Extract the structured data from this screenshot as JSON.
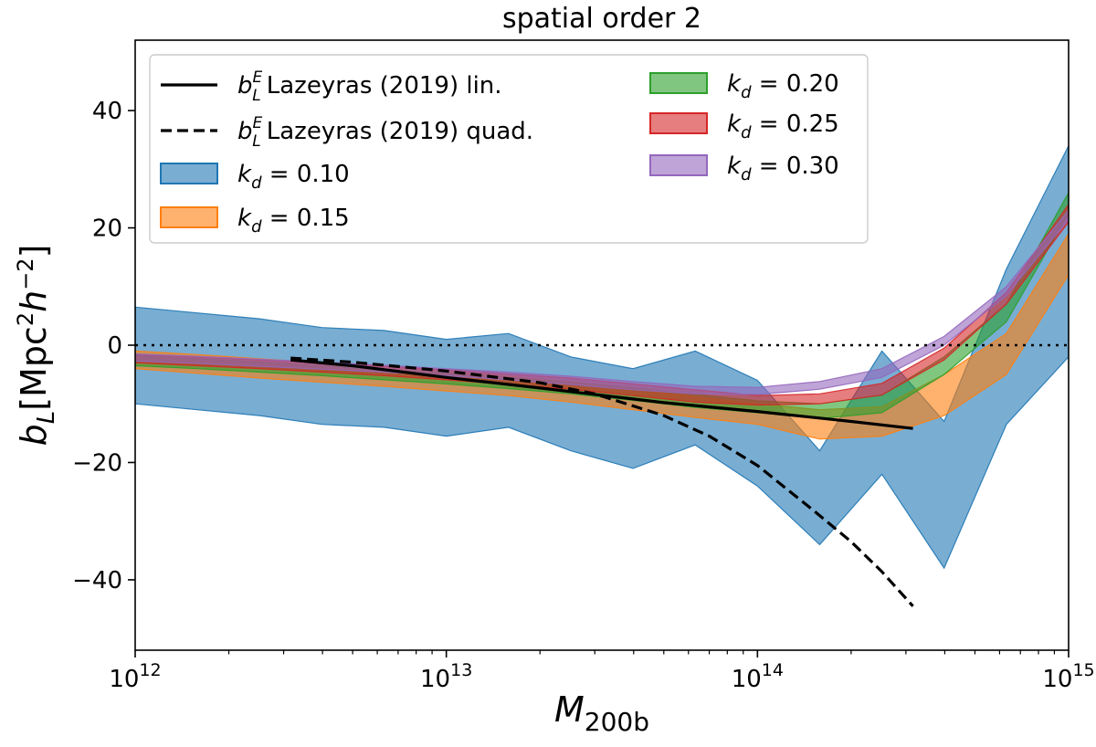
{
  "chart_data": {
    "type": "area",
    "title": "spatial order 2",
    "xlabel": "M",
    "xlabel_sub": "200b",
    "ylabel": "b_L[Mpc^2 h^-2]",
    "xscale": "log",
    "xlim": [
      1000000000000.0,
      1000000000000000.0
    ],
    "ylim": [
      -52,
      52
    ],
    "x_ticks": [
      {
        "value": 1000000000000.0,
        "base": "10",
        "exp": "12"
      },
      {
        "value": 10000000000000.0,
        "base": "10",
        "exp": "13"
      },
      {
        "value": 100000000000000.0,
        "base": "10",
        "exp": "14"
      },
      {
        "value": 1000000000000000.0,
        "base": "10",
        "exp": "15"
      }
    ],
    "y_ticks": [
      {
        "value": 40,
        "label": "40"
      },
      {
        "value": 20,
        "label": "20"
      },
      {
        "value": 0,
        "label": "0"
      },
      {
        "value": -20,
        "label": "−20"
      },
      {
        "value": -40,
        "label": "−40"
      }
    ],
    "zero_line": 0,
    "bands": [
      {
        "name": "k_d = 0.10",
        "sub": "d",
        "value_text": "0.10",
        "fill": "#1f77b4",
        "opacity": 0.6,
        "x": [
          1000000000000.0,
          1585000000000.0,
          2512000000000.0,
          3981000000000.0,
          6310000000000.0,
          10000000000000.0,
          15850000000000.0,
          25120000000000.0,
          39810000000000.0,
          63100000000000.0,
          100000000000000.0,
          158500000000000.0,
          251200000000000.0,
          398100000000000.0,
          631000000000000.0,
          1000000000000000.0
        ],
        "upper": [
          6.5,
          5.5,
          4.5,
          3,
          2.5,
          1,
          2,
          -2,
          -4,
          -1,
          -6,
          -18,
          -1,
          -13,
          13,
          34
        ],
        "lower": [
          -10,
          -11,
          -12,
          -13.5,
          -14,
          -15.5,
          -14,
          -18,
          -21,
          -17,
          -24,
          -34,
          -22,
          -38,
          -13.5,
          -2
        ]
      },
      {
        "name": "k_d = 0.15",
        "sub": "d",
        "value_text": "0.15",
        "fill": "#ff7f0e",
        "opacity": 0.6,
        "x": [
          1000000000000.0,
          1585000000000.0,
          2512000000000.0,
          3981000000000.0,
          6310000000000.0,
          10000000000000.0,
          15850000000000.0,
          25120000000000.0,
          39810000000000.0,
          63100000000000.0,
          100000000000000.0,
          158500000000000.0,
          251200000000000.0,
          398100000000000.0,
          631000000000000.0,
          1000000000000000.0
        ],
        "upper": [
          -1,
          -1.6,
          -2.3,
          -3,
          -3.7,
          -4.5,
          -5.3,
          -6.3,
          -7.5,
          -8.8,
          -10,
          -11,
          -10.5,
          -5,
          2,
          19
        ],
        "lower": [
          -4,
          -4.8,
          -5.6,
          -6.3,
          -7,
          -7.8,
          -8.6,
          -9.7,
          -11,
          -12.3,
          -13.5,
          -16,
          -15.5,
          -12,
          -5,
          12
        ]
      },
      {
        "name": "k_d = 0.20",
        "sub": "d",
        "value_text": "0.20",
        "fill": "#2ca02c",
        "opacity": 0.6,
        "x": [
          1000000000000.0,
          1585000000000.0,
          2512000000000.0,
          3981000000000.0,
          6310000000000.0,
          10000000000000.0,
          15850000000000.0,
          25120000000000.0,
          39810000000000.0,
          63100000000000.0,
          100000000000000.0,
          158500000000000.0,
          251200000000000.0,
          398100000000000.0,
          631000000000000.0,
          1000000000000000.0
        ],
        "upper": [
          -1.8,
          -2.3,
          -2.9,
          -3.5,
          -4.1,
          -4.8,
          -5.5,
          -6.3,
          -7.3,
          -8.4,
          -9.5,
          -10,
          -8.5,
          -2,
          7,
          26
        ],
        "lower": [
          -3.5,
          -4,
          -4.6,
          -5.2,
          -5.9,
          -6.6,
          -7.4,
          -8.3,
          -9.4,
          -10.6,
          -11.5,
          -12.5,
          -11.5,
          -5,
          4,
          22.5
        ]
      },
      {
        "name": "k_d = 0.25",
        "sub": "d",
        "value_text": "0.25",
        "fill": "#d62728",
        "opacity": 0.6,
        "x": [
          1000000000000.0,
          1585000000000.0,
          2512000000000.0,
          3981000000000.0,
          6310000000000.0,
          10000000000000.0,
          15850000000000.0,
          25120000000000.0,
          39810000000000.0,
          63100000000000.0,
          100000000000000.0,
          158500000000000.0,
          251200000000000.0,
          398100000000000.0,
          631000000000000.0,
          1000000000000000.0
        ],
        "upper": [
          -1.6,
          -2,
          -2.5,
          -3,
          -3.6,
          -4.2,
          -4.9,
          -5.6,
          -6.6,
          -7.6,
          -8.6,
          -8.3,
          -6.5,
          -0.5,
          9,
          24
        ],
        "lower": [
          -3,
          -3.5,
          -4,
          -4.6,
          -5.2,
          -5.9,
          -6.7,
          -7.5,
          -8.6,
          -9.7,
          -10.2,
          -10,
          -8.5,
          -2.5,
          7,
          21
        ]
      },
      {
        "name": "k_d = 0.30",
        "sub": "d",
        "value_text": "0.30",
        "fill": "#9467bd",
        "opacity": 0.6,
        "x": [
          1000000000000.0,
          1585000000000.0,
          2512000000000.0,
          3981000000000.0,
          6310000000000.0,
          10000000000000.0,
          15850000000000.0,
          25120000000000.0,
          39810000000000.0,
          63100000000000.0,
          100000000000000.0,
          158500000000000.0,
          251200000000000.0,
          398100000000000.0,
          631000000000000.0,
          1000000000000000.0
        ],
        "upper": [
          -1.5,
          -1.9,
          -2.4,
          -2.9,
          -3.4,
          -4,
          -4.6,
          -5.3,
          -6.2,
          -7,
          -7.2,
          -6.2,
          -4,
          1.5,
          10,
          23
        ],
        "lower": [
          -2.7,
          -3.1,
          -3.6,
          -4.1,
          -4.6,
          -5.2,
          -5.9,
          -6.7,
          -7.6,
          -8.3,
          -8.4,
          -7.5,
          -5.5,
          0,
          8.5,
          21.5
        ]
      }
    ],
    "lines": [
      {
        "name": "b_L^E Lazeyras (2019) lin.",
        "style": "solid",
        "color": "#000000",
        "label_text": "Lazeyras (2019) lin.",
        "x": [
          3160000000000.0,
          5000000000000.0,
          10000000000000.0,
          20000000000000.0,
          50000000000000.0,
          100000000000000.0,
          200000000000000.0,
          316000000000000.0
        ],
        "y": [
          -2.5,
          -3.5,
          -5.5,
          -7.3,
          -9.8,
          -11.3,
          -13,
          -14.2
        ]
      },
      {
        "name": "b_L^E Lazeyras (2019) quad.",
        "style": "dashed",
        "color": "#000000",
        "label_text": "Lazeyras (2019) quad.",
        "x": [
          3160000000000.0,
          5000000000000.0,
          10000000000000.0,
          20000000000000.0,
          30000000000000.0,
          50000000000000.0,
          70000000000000.0,
          100000000000000.0,
          150000000000000.0,
          200000000000000.0,
          250000000000000.0,
          316000000000000.0
        ],
        "y": [
          -2.2,
          -2.9,
          -4.4,
          -6.4,
          -8.3,
          -12,
          -15.5,
          -20.5,
          -28,
          -33.5,
          -38.5,
          -44.5
        ]
      }
    ],
    "legend": {
      "placement": "upper-left",
      "line_symbol": "b",
      "line_sub": "L",
      "line_sup": "E",
      "k_symbol": "k",
      "eq": " = "
    }
  }
}
